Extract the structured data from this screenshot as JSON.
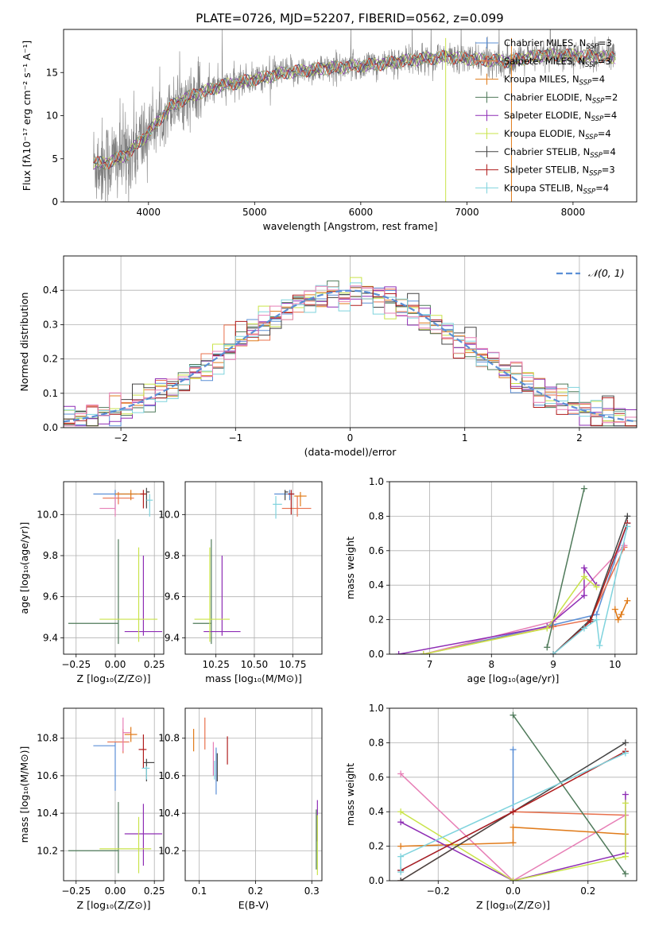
{
  "figure": {
    "title": "PLATE=0726, MJD=52207, FIBERID=0562, z=0.099",
    "colors": {
      "Chabrier MILES": "#5b8fd6",
      "Salpeter MILES": "#e8704c",
      "Kroupa MILES": "#e07b1a",
      "Chabrier ELODIE": "#4f7a5a",
      "Salpeter ELODIE": "#8e2db5",
      "Kroupa ELODIE": "#c9e34a",
      "Chabrier STELIB": "#444444",
      "Salpeter STELIB": "#b01d1d",
      "Kroupa STELIB": "#7fd3dd",
      "pink": "#e77fb6",
      "data": "#7f7f7f",
      "gaussian": "#5b8fd6"
    }
  },
  "chart_data": [
    {
      "id": "spectrum",
      "type": "line",
      "xlabel": "wavelength [Angstrom, rest frame]",
      "ylabel": "Flux [fλ10⁻¹⁷ erg cm⁻² s⁻¹ A⁻¹]",
      "xlim": [
        3200,
        8600
      ],
      "ylim": [
        0,
        20
      ],
      "xticks": [
        4000,
        5000,
        6000,
        7000,
        8000
      ],
      "yticks": [
        0,
        5,
        10,
        15
      ],
      "grid": false,
      "legend_position": "right",
      "legend": [
        {
          "name": "Chabrier MILES, N",
          "sub": "SSP",
          "val": "=3",
          "color": "#5b8fd6"
        },
        {
          "name": "Salpeter MILES, N",
          "sub": "SSP",
          "val": "=3",
          "color": "#e8704c"
        },
        {
          "name": "Kroupa MILES, N",
          "sub": "SSP",
          "val": "=4",
          "color": "#e07b1a"
        },
        {
          "name": "Chabrier ELODIE, N",
          "sub": "SSP",
          "val": "=2",
          "color": "#4f7a5a"
        },
        {
          "name": "Salpeter ELODIE, N",
          "sub": "SSP",
          "val": "=4",
          "color": "#8e2db5"
        },
        {
          "name": "Kroupa ELODIE, N",
          "sub": "SSP",
          "val": "=4",
          "color": "#c9e34a"
        },
        {
          "name": "Chabrier STELIB, N",
          "sub": "SSP",
          "val": "=4",
          "color": "#444444"
        },
        {
          "name": "Salpeter STELIB, N",
          "sub": "SSP",
          "val": "=3",
          "color": "#b01d1d"
        },
        {
          "name": "Kroupa STELIB, N",
          "sub": "SSP",
          "val": "=4",
          "color": "#7fd3dd"
        }
      ],
      "continuum": {
        "x": [
          3480,
          3600,
          3800,
          4000,
          4200,
          4400,
          4700,
          5000,
          5300,
          5600,
          5900,
          6200,
          6500,
          6800,
          7100,
          7400,
          7700,
          8000,
          8300
        ],
        "y": [
          4.5,
          4.5,
          5.5,
          8.0,
          11.0,
          12.3,
          13.5,
          14.2,
          15.0,
          15.4,
          15.7,
          16.0,
          16.5,
          16.8,
          16.5,
          16.3,
          17.0,
          17.0,
          16.8
        ]
      }
    },
    {
      "id": "residuals",
      "type": "histogram",
      "xlabel": "(data-model)/error",
      "ylabel": "Normed distribution",
      "xlim": [
        -2.5,
        2.5
      ],
      "ylim": [
        0,
        0.5
      ],
      "xticks": [
        -2,
        -1,
        0,
        1,
        2
      ],
      "yticks": [
        0.0,
        0.1,
        0.2,
        0.3,
        0.4
      ],
      "grid": true,
      "legend_position": "top-right",
      "gaussian_label": "𝒩(0, 1)",
      "bin_width": 0.1,
      "bin_start": -2.5
    },
    {
      "id": "age-vs-Z",
      "type": "scatter",
      "xlabel": "Z [log₁₀(Z/Z⊙)]",
      "ylabel": "age  [log₁₀(age/yr)]",
      "xlim": [
        -0.33,
        0.31
      ],
      "ylim": [
        9.32,
        10.16
      ],
      "xticks": [
        -0.25,
        0.0,
        0.25
      ],
      "yticks": [
        9.4,
        9.6,
        9.8,
        10.0
      ],
      "grid": true,
      "points": [
        {
          "color": "#5b8fd6",
          "x": 0.0,
          "xerr": [
            0.14,
            0.14
          ],
          "y": 10.1,
          "yerr": [
            0.08,
            0.02
          ]
        },
        {
          "color": "#e8704c",
          "x": 0.02,
          "xerr": [
            0.1,
            0.1
          ],
          "y": 10.08,
          "yerr": [
            0.03,
            0.03
          ]
        },
        {
          "color": "#e07b1a",
          "x": 0.1,
          "xerr": [
            0.1,
            0.1
          ],
          "y": 10.1,
          "yerr": [
            0.03,
            0.02
          ]
        },
        {
          "color": "#e77fb6",
          "x": 0.0,
          "xerr": [
            0.1,
            0.0
          ],
          "y": 10.03,
          "yerr": [
            0.04,
            0.06
          ]
        },
        {
          "color": "#4f7a5a",
          "x": 0.02,
          "xerr": [
            0.32,
            0.0
          ],
          "y": 9.47,
          "yerr": [
            0.1,
            0.41
          ]
        },
        {
          "color": "#8e2db5",
          "x": 0.18,
          "xerr": [
            0.12,
            0.12
          ],
          "y": 9.43,
          "yerr": [
            0.02,
            0.37
          ]
        },
        {
          "color": "#c9e34a",
          "x": 0.15,
          "xerr": [
            0.25,
            0.12
          ],
          "y": 9.49,
          "yerr": [
            0.11,
            0.35
          ]
        },
        {
          "color": "#444444",
          "x": 0.2,
          "xerr": [
            0.0,
            0.02
          ],
          "y": 10.11,
          "yerr": [
            0.08,
            0.02
          ]
        },
        {
          "color": "#b01d1d",
          "x": 0.18,
          "xerr": [
            0.02,
            0.02
          ],
          "y": 10.1,
          "yerr": [
            0.07,
            0.02
          ]
        },
        {
          "color": "#7fd3dd",
          "x": 0.22,
          "xerr": [
            0.02,
            0.02
          ],
          "y": 10.07,
          "yerr": [
            0.08,
            0.03
          ]
        }
      ]
    },
    {
      "id": "age-vs-mass",
      "type": "scatter",
      "xlabel": "mass [log₁₀(M/M⊙)]",
      "ylabel": "",
      "xlim": [
        10.05,
        10.94
      ],
      "ylim": [
        9.32,
        10.16
      ],
      "xticks": [
        10.25,
        10.5,
        10.75
      ],
      "yticks": [
        9.4,
        9.6,
        9.8,
        10.0
      ],
      "grid": true,
      "points": [
        {
          "color": "#5b8fd6",
          "x": 10.73,
          "xerr": [
            0.1,
            0.03
          ],
          "y": 10.1,
          "yerr": [
            0.03,
            0.02
          ]
        },
        {
          "color": "#e8704c",
          "x": 10.78,
          "xerr": [
            0.1,
            0.09
          ],
          "y": 10.03,
          "yerr": [
            0.04,
            0.06
          ]
        },
        {
          "color": "#e07b1a",
          "x": 10.8,
          "xerr": [
            0.04,
            0.04
          ],
          "y": 10.09,
          "yerr": [
            0.05,
            0.02
          ]
        },
        {
          "color": "#4f7a5a",
          "x": 10.22,
          "xerr": [
            0.12,
            0.0
          ],
          "y": 9.47,
          "yerr": [
            0.1,
            0.41
          ]
        },
        {
          "color": "#8e2db5",
          "x": 10.29,
          "xerr": [
            0.12,
            0.12
          ],
          "y": 9.43,
          "yerr": [
            0.02,
            0.37
          ]
        },
        {
          "color": "#c9e34a",
          "x": 10.21,
          "xerr": [
            0.1,
            0.13
          ],
          "y": 9.49,
          "yerr": [
            0.11,
            0.35
          ]
        },
        {
          "color": "#444444",
          "x": 10.7,
          "xerr": [
            0.0,
            0.02
          ],
          "y": 10.11,
          "yerr": [
            0.04,
            0.01
          ]
        },
        {
          "color": "#b01d1d",
          "x": 10.74,
          "xerr": [
            0.02,
            0.02
          ],
          "y": 10.1,
          "yerr": [
            0.1,
            0.02
          ]
        },
        {
          "color": "#7fd3dd",
          "x": 10.64,
          "xerr": [
            0.02,
            0.04
          ],
          "y": 10.05,
          "yerr": [
            0.07,
            0.04
          ]
        }
      ]
    },
    {
      "id": "mass-weight-vs-age",
      "type": "line",
      "xlabel": "age  [log₁₀(age/yr)]",
      "ylabel": "mass weight",
      "xlim": [
        6.35,
        10.35
      ],
      "ylim": [
        0,
        1
      ],
      "xticks": [
        7,
        8,
        9,
        10
      ],
      "yticks": [
        0.0,
        0.2,
        0.4,
        0.6,
        0.8,
        1.0
      ],
      "grid": true,
      "series": [
        {
          "color": "#5b8fd6",
          "x": [
            6.9,
            9.0,
            9.7,
            10.2
          ],
          "y": [
            0.0,
            0.17,
            0.23,
            0.76
          ]
        },
        {
          "color": "#e8704c",
          "x": [
            6.9,
            9.0,
            9.6,
            10.15
          ],
          "y": [
            0.0,
            0.16,
            0.2,
            0.62
          ]
        },
        {
          "color": "#e77fb6",
          "x": [
            6.9,
            9.0,
            10.15
          ],
          "y": [
            0.0,
            0.19,
            0.63
          ]
        },
        {
          "color": "#e07b1a",
          "x": [
            10.0,
            10.05,
            10.1,
            10.2
          ],
          "y": [
            0.26,
            0.2,
            0.23,
            0.31
          ]
        },
        {
          "color": "#4f7a5a",
          "x": [
            8.9,
            9.5
          ],
          "y": [
            0.04,
            0.96
          ]
        },
        {
          "color": "#8e2db5",
          "x": [
            6.5,
            8.9,
            9.5,
            9.5,
            9.7
          ],
          "y": [
            0.0,
            0.16,
            0.34,
            0.5,
            0.4
          ]
        },
        {
          "color": "#c9e34a",
          "x": [
            6.9,
            8.9,
            9.5,
            9.7
          ],
          "y": [
            0.0,
            0.15,
            0.45,
            0.39
          ]
        },
        {
          "color": "#444444",
          "x": [
            9.0,
            9.6,
            10.2
          ],
          "y": [
            0.0,
            0.2,
            0.8
          ]
        },
        {
          "color": "#b01d1d",
          "x": [
            9.0,
            9.6,
            10.2
          ],
          "y": [
            0.0,
            0.19,
            0.76
          ]
        },
        {
          "color": "#7fd3dd",
          "x": [
            9.0,
            9.5,
            9.7,
            9.75,
            10.2
          ],
          "y": [
            0.0,
            0.15,
            0.2,
            0.05,
            0.74
          ]
        }
      ]
    },
    {
      "id": "mass-vs-Z",
      "type": "scatter",
      "xlabel": "Z [log₁₀(Z/Z⊙)]",
      "ylabel": "mass [log₁₀(M/M⊙)]",
      "xlim": [
        -0.33,
        0.31
      ],
      "ylim": [
        10.04,
        10.96
      ],
      "xticks": [
        -0.25,
        0.0,
        0.25
      ],
      "yticks": [
        10.2,
        10.4,
        10.6,
        10.8
      ],
      "grid": true,
      "points": [
        {
          "color": "#5b8fd6",
          "x": 0.0,
          "xerr": [
            0.14,
            0.0
          ],
          "y": 10.76,
          "yerr": [
            0.24,
            0.02
          ]
        },
        {
          "color": "#e8704c",
          "x": 0.05,
          "xerr": [
            0.1,
            0.04
          ],
          "y": 10.78,
          "yerr": [
            0.06,
            0.07
          ]
        },
        {
          "color": "#e77fb6",
          "x": 0.05,
          "xerr": [
            0.0,
            0.05
          ],
          "y": 10.83,
          "yerr": [
            0.1,
            0.08
          ]
        },
        {
          "color": "#e07b1a",
          "x": 0.1,
          "xerr": [
            0.04,
            0.04
          ],
          "y": 10.82,
          "yerr": [
            0.04,
            0.04
          ]
        },
        {
          "color": "#4f7a5a",
          "x": 0.02,
          "xerr": [
            0.32,
            0.0
          ],
          "y": 10.2,
          "yerr": [
            0.12,
            0.26
          ]
        },
        {
          "color": "#8e2db5",
          "x": 0.18,
          "xerr": [
            0.12,
            0.12
          ],
          "y": 10.29,
          "yerr": [
            0.17,
            0.16
          ]
        },
        {
          "color": "#c9e34a",
          "x": 0.15,
          "xerr": [
            0.25,
            0.08
          ],
          "y": 10.21,
          "yerr": [
            0.13,
            0.17
          ]
        },
        {
          "color": "#444444",
          "x": 0.2,
          "xerr": [
            0.02,
            0.05
          ],
          "y": 10.67,
          "yerr": [
            0.1,
            0.02
          ]
        },
        {
          "color": "#b01d1d",
          "x": 0.18,
          "xerr": [
            0.03,
            0.02
          ],
          "y": 10.74,
          "yerr": [
            0.1,
            0.08
          ]
        },
        {
          "color": "#7fd3dd",
          "x": 0.2,
          "xerr": [
            0.03,
            0.02
          ],
          "y": 10.64,
          "yerr": [
            0.06,
            0.01
          ]
        }
      ]
    },
    {
      "id": "mass-vs-ebv",
      "type": "scatter",
      "xlabel": "E(B-V)",
      "ylabel": "",
      "xlim": [
        0.075,
        0.318
      ],
      "ylim": [
        10.04,
        10.96
      ],
      "xticks": [
        0.1,
        0.2,
        0.3
      ],
      "yticks": [
        10.2,
        10.4,
        10.6,
        10.8
      ],
      "grid": true,
      "points": [
        {
          "color": "#5b8fd6",
          "x": 0.13,
          "xerr": [
            0.0,
            0.0
          ],
          "y": 10.7,
          "yerr": [
            0.2,
            0.05
          ]
        },
        {
          "color": "#e8704c",
          "x": 0.11,
          "xerr": [
            0.0,
            0.0
          ],
          "y": 10.82,
          "yerr": [
            0.08,
            0.09
          ]
        },
        {
          "color": "#e77fb6",
          "x": 0.125,
          "xerr": [
            0.0,
            0.0
          ],
          "y": 10.7,
          "yerr": [
            0.1,
            0.08
          ]
        },
        {
          "color": "#e07b1a",
          "x": 0.09,
          "xerr": [
            0.0,
            0.0
          ],
          "y": 10.8,
          "yerr": [
            0.07,
            0.05
          ]
        },
        {
          "color": "#4f7a5a",
          "x": 0.308,
          "xerr": [
            0.0,
            0.0
          ],
          "y": 10.3,
          "yerr": [
            0.2,
            0.12
          ]
        },
        {
          "color": "#8e2db5",
          "x": 0.31,
          "xerr": [
            0.0,
            0.0
          ],
          "y": 10.35,
          "yerr": [
            0.1,
            0.12
          ]
        },
        {
          "color": "#c9e34a",
          "x": 0.31,
          "xerr": [
            0.0,
            0.0
          ],
          "y": 10.25,
          "yerr": [
            0.18,
            0.14
          ]
        },
        {
          "color": "#444444",
          "x": 0.132,
          "xerr": [
            0.0,
            0.0
          ],
          "y": 10.65,
          "yerr": [
            0.08,
            0.07
          ]
        },
        {
          "color": "#b01d1d",
          "x": 0.15,
          "xerr": [
            0.0,
            0.0
          ],
          "y": 10.74,
          "yerr": [
            0.08,
            0.07
          ]
        },
        {
          "color": "#7fd3dd",
          "x": 0.127,
          "xerr": [
            0.0,
            0.0
          ],
          "y": 10.64,
          "yerr": [
            0.06,
            0.04
          ]
        }
      ]
    },
    {
      "id": "mass-weight-vs-Z",
      "type": "line",
      "xlabel": "Z [log₁₀(Z/Z⊙)]",
      "ylabel": "mass weight",
      "xlim": [
        -0.33,
        0.33
      ],
      "ylim": [
        0,
        1
      ],
      "xticks": [
        -0.2,
        0.0,
        0.2
      ],
      "yticks": [
        0.0,
        0.2,
        0.4,
        0.6,
        0.8,
        1.0
      ],
      "grid": true,
      "series": [
        {
          "color": "#5b8fd6",
          "x": [
            -0.3,
            0.0,
            0.0
          ],
          "y": [
            0.06,
            0.4,
            0.76
          ]
        },
        {
          "color": "#e8704c",
          "x": [
            -0.3,
            0.0,
            0.3
          ],
          "y": [
            0.0,
            0.4,
            0.38
          ]
        },
        {
          "color": "#e77fb6",
          "x": [
            -0.3,
            0.0,
            0.3
          ],
          "y": [
            0.62,
            0.0,
            0.38
          ]
        },
        {
          "color": "#e07b1a",
          "x": [
            -0.3,
            0.0,
            0.0,
            0.3
          ],
          "y": [
            0.2,
            0.22,
            0.31,
            0.27
          ]
        },
        {
          "color": "#4f7a5a",
          "x": [
            0.0,
            0.3
          ],
          "y": [
            0.96,
            0.04
          ]
        },
        {
          "color": "#8e2db5",
          "x": [
            -0.3,
            0.0,
            0.3,
            0.3
          ],
          "y": [
            0.34,
            0.0,
            0.16,
            0.5
          ]
        },
        {
          "color": "#c9e34a",
          "x": [
            -0.3,
            0.0,
            0.3,
            0.3
          ],
          "y": [
            0.4,
            0.0,
            0.14,
            0.45
          ]
        },
        {
          "color": "#444444",
          "x": [
            -0.3,
            0.3
          ],
          "y": [
            0.0,
            0.8
          ]
        },
        {
          "color": "#b01d1d",
          "x": [
            -0.3,
            0.0,
            0.3
          ],
          "y": [
            0.06,
            0.4,
            0.75
          ]
        },
        {
          "color": "#7fd3dd",
          "x": [
            -0.3,
            -0.3,
            0.3
          ],
          "y": [
            0.05,
            0.14,
            0.74
          ]
        }
      ]
    }
  ]
}
